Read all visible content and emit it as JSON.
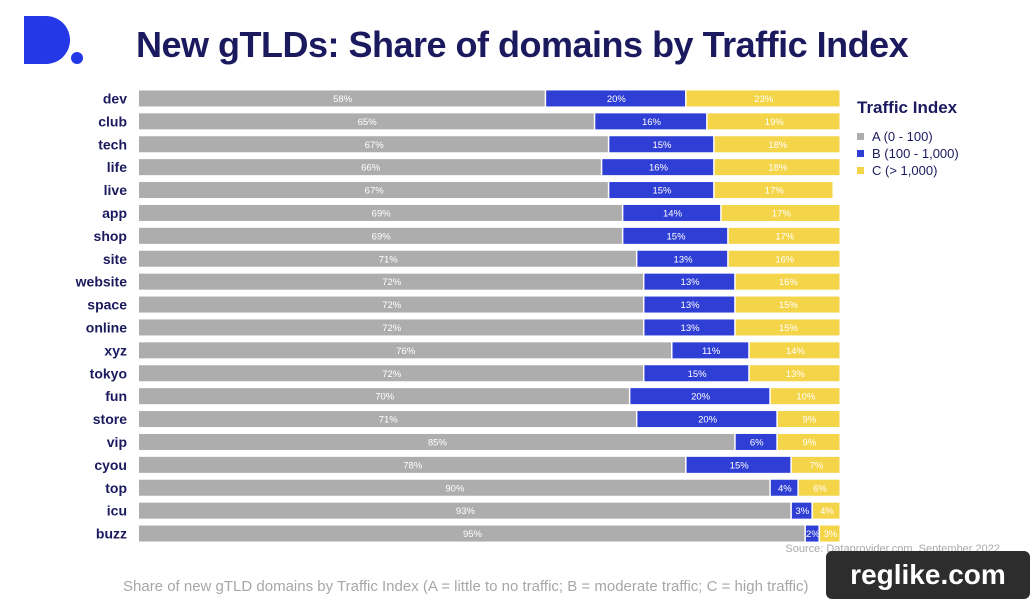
{
  "title": "New gTLDs: Share of domains by Traffic Index",
  "source": "Source: Dataprovider.com, September 2022",
  "caption": "Share of new gTLD domains by Traffic Index (A = little to no traffic; B = moderate traffic; C = high traffic)",
  "watermark": "reglike.com",
  "logo_icon": "dataprovider-d-logo",
  "colors": {
    "A": "#adadad",
    "B": "#2f3fd6",
    "C": "#f4d449",
    "brand": "#2438e8",
    "text": "#1b1a5e"
  },
  "chart_data": {
    "type": "bar",
    "orientation": "horizontal",
    "stacked": true,
    "title": "New gTLDs: Share of domains by Traffic Index",
    "legend_title": "Traffic Index",
    "legend_position": "right",
    "xlim": [
      0,
      100
    ],
    "categories": [
      "dev",
      "club",
      "tech",
      "life",
      "live",
      "app",
      "shop",
      "site",
      "website",
      "space",
      "online",
      "xyz",
      "tokyo",
      "fun",
      "store",
      "vip",
      "cyou",
      "top",
      "icu",
      "buzz"
    ],
    "series": [
      {
        "name": "A (0 - 100)",
        "color": "#adadad",
        "values": [
          58,
          65,
          67,
          66,
          67,
          69,
          69,
          71,
          72,
          72,
          72,
          76,
          72,
          70,
          71,
          85,
          78,
          90,
          93,
          95
        ]
      },
      {
        "name": "B (100 - 1,000)",
        "color": "#2f3fd6",
        "values": [
          20,
          16,
          15,
          16,
          15,
          14,
          15,
          13,
          13,
          13,
          13,
          11,
          15,
          20,
          20,
          6,
          15,
          4,
          3,
          2
        ]
      },
      {
        "name": "C (> 1,000)",
        "color": "#f4d449",
        "values": [
          23,
          19,
          18,
          18,
          17,
          17,
          17,
          16,
          16,
          15,
          15,
          14,
          13,
          10,
          9,
          9,
          7,
          6,
          4,
          3
        ]
      }
    ]
  }
}
